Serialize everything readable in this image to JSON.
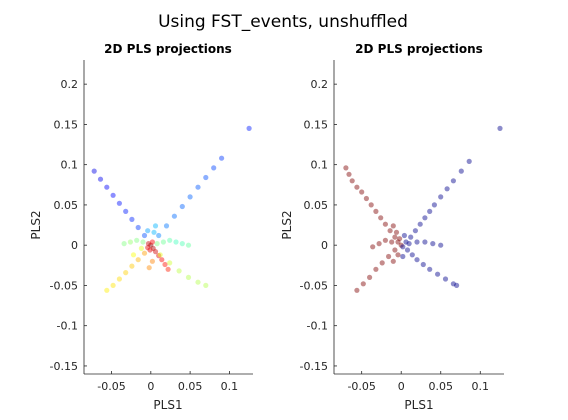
{
  "figure": {
    "title": "Using FST_events, unshuffled"
  },
  "chart_data": [
    {
      "type": "scatter",
      "title": "2D PLS projections",
      "xlabel": "PLS1",
      "ylabel": "PLS2",
      "xlim": [
        -0.085,
        0.13
      ],
      "ylim": [
        -0.16,
        0.23
      ],
      "xticks": [
        -0.05,
        0,
        0.05,
        0.1
      ],
      "xtick_labels": [
        "-0.05",
        "0",
        "0.05",
        "0.1"
      ],
      "yticks": [
        -0.15,
        -0.1,
        -0.05,
        0,
        0.05,
        0.1,
        0.15,
        0.2
      ],
      "ytick_labels": [
        "-0.15",
        "-0.1",
        "-0.05",
        "0",
        "0.05",
        "0.1",
        "0.15",
        "0.2"
      ],
      "grid": false,
      "colormap": "jet",
      "color_encoding": "continuous value per point (blue→red)",
      "point_alpha": 0.12,
      "series": [
        {
          "points": [
            [
              0.0,
              0.0,
              1.0
            ],
            [
              0.003,
              -0.004,
              0.95
            ],
            [
              0.006,
              -0.008,
              0.92
            ],
            [
              0.01,
              -0.013,
              0.9
            ],
            [
              0.014,
              -0.018,
              0.88
            ],
            [
              0.018,
              -0.024,
              0.86
            ],
            [
              0.022,
              -0.03,
              0.85
            ],
            [
              -0.003,
              0.002,
              0.93
            ],
            [
              -0.004,
              -0.003,
              0.9
            ],
            [
              0.002,
              0.004,
              0.88
            ],
            [
              -0.001,
              -0.006,
              0.9
            ],
            [
              0.008,
              0.002,
              0.5
            ],
            [
              0.016,
              0.004,
              0.48
            ],
            [
              0.024,
              0.006,
              0.46
            ],
            [
              0.032,
              0.004,
              0.44
            ],
            [
              0.04,
              0.002,
              0.45
            ],
            [
              0.048,
              0.0,
              0.47
            ],
            [
              -0.01,
              0.004,
              0.5
            ],
            [
              -0.018,
              0.006,
              0.5
            ],
            [
              -0.026,
              0.004,
              0.52
            ],
            [
              -0.034,
              0.002,
              0.5
            ],
            [
              -0.008,
              -0.01,
              0.72
            ],
            [
              -0.016,
              -0.018,
              0.7
            ],
            [
              -0.024,
              -0.026,
              0.68
            ],
            [
              -0.032,
              -0.034,
              0.67
            ],
            [
              -0.04,
              -0.042,
              0.66
            ],
            [
              -0.048,
              -0.05,
              0.65
            ],
            [
              -0.056,
              -0.056,
              0.64
            ],
            [
              -0.008,
              0.012,
              0.2
            ],
            [
              -0.016,
              0.022,
              0.18
            ],
            [
              -0.024,
              0.032,
              0.16
            ],
            [
              -0.032,
              0.042,
              0.15
            ],
            [
              -0.04,
              0.052,
              0.14
            ],
            [
              -0.048,
              0.062,
              0.13
            ],
            [
              -0.056,
              0.072,
              0.12
            ],
            [
              -0.064,
              0.082,
              0.11
            ],
            [
              -0.072,
              0.092,
              0.1
            ],
            [
              0.01,
              0.012,
              0.25
            ],
            [
              0.02,
              0.024,
              0.24
            ],
            [
              0.03,
              0.036,
              0.23
            ],
            [
              0.04,
              0.048,
              0.22
            ],
            [
              0.05,
              0.06,
              0.22
            ],
            [
              0.06,
              0.072,
              0.21
            ],
            [
              0.07,
              0.084,
              0.2
            ],
            [
              0.08,
              0.096,
              0.19
            ],
            [
              0.09,
              0.108,
              0.18
            ],
            [
              0.125,
              0.145,
              0.15
            ],
            [
              0.012,
              -0.012,
              0.6
            ],
            [
              0.024,
              -0.022,
              0.58
            ],
            [
              0.036,
              -0.032,
              0.56
            ],
            [
              0.048,
              -0.04,
              0.55
            ],
            [
              0.06,
              -0.046,
              0.55
            ],
            [
              -0.012,
              -0.004,
              0.6
            ],
            [
              -0.022,
              -0.012,
              0.62
            ],
            [
              0.004,
              0.016,
              0.3
            ],
            [
              0.006,
              0.024,
              0.3
            ],
            [
              -0.004,
              0.018,
              0.28
            ],
            [
              0.002,
              -0.02,
              0.75
            ],
            [
              -0.002,
              -0.028,
              0.74
            ],
            [
              0.07,
              -0.05,
              0.55
            ]
          ]
        }
      ]
    },
    {
      "type": "scatter",
      "title": "2D PLS projections",
      "xlabel": "PLS1",
      "ylabel": "PLS2",
      "xlim": [
        -0.085,
        0.13
      ],
      "ylim": [
        -0.16,
        0.23
      ],
      "xticks": [
        -0.05,
        0,
        0.05,
        0.1
      ],
      "xtick_labels": [
        "-0.05",
        "0",
        "0.05",
        "0.1"
      ],
      "yticks": [
        -0.15,
        -0.1,
        -0.05,
        0,
        0.05,
        0.1,
        0.15,
        0.2
      ],
      "ytick_labels": [
        "-0.15",
        "-0.1",
        "-0.05",
        "0",
        "0.05",
        "0.1",
        "0.15",
        "0.2"
      ],
      "grid": false,
      "point_alpha": 0.12,
      "series": [
        {
          "color": "#7f0000",
          "points": [
            [
              0.0,
              0.0
            ],
            [
              -0.004,
              0.004
            ],
            [
              -0.008,
              0.01
            ],
            [
              -0.014,
              0.018
            ],
            [
              -0.02,
              0.026
            ],
            [
              -0.026,
              0.034
            ],
            [
              -0.032,
              0.042
            ],
            [
              -0.038,
              0.05
            ],
            [
              -0.044,
              0.058
            ],
            [
              -0.05,
              0.066
            ],
            [
              -0.056,
              0.072
            ],
            [
              -0.062,
              0.08
            ],
            [
              -0.008,
              -0.006
            ],
            [
              -0.016,
              -0.014
            ],
            [
              -0.024,
              -0.022
            ],
            [
              -0.032,
              -0.03
            ],
            [
              -0.04,
              -0.04
            ],
            [
              -0.048,
              -0.048
            ],
            [
              -0.056,
              -0.056
            ],
            [
              -0.012,
              0.004
            ],
            [
              -0.02,
              0.006
            ],
            [
              -0.028,
              0.002
            ],
            [
              -0.036,
              -0.002
            ],
            [
              -0.006,
              0.016
            ],
            [
              -0.01,
              0.024
            ],
            [
              -0.004,
              -0.012
            ],
            [
              -0.01,
              -0.02
            ],
            [
              -0.066,
              0.088
            ],
            [
              -0.07,
              0.096
            ],
            [
              -0.002,
              0.008
            ]
          ]
        },
        {
          "color": "#00008b",
          "points": [
            [
              0.002,
              -0.002
            ],
            [
              0.006,
              0.004
            ],
            [
              0.012,
              0.01
            ],
            [
              0.018,
              0.018
            ],
            [
              0.024,
              0.026
            ],
            [
              0.03,
              0.034
            ],
            [
              0.036,
              0.042
            ],
            [
              0.042,
              0.05
            ],
            [
              0.05,
              0.06
            ],
            [
              0.058,
              0.07
            ],
            [
              0.066,
              0.08
            ],
            [
              0.076,
              0.092
            ],
            [
              0.086,
              0.104
            ],
            [
              0.125,
              0.145
            ],
            [
              0.008,
              -0.006
            ],
            [
              0.014,
              -0.012
            ],
            [
              0.02,
              -0.018
            ],
            [
              0.028,
              -0.024
            ],
            [
              0.036,
              -0.03
            ],
            [
              0.046,
              -0.036
            ],
            [
              0.056,
              -0.042
            ],
            [
              0.066,
              -0.048
            ],
            [
              0.01,
              0.002
            ],
            [
              0.02,
              0.004
            ],
            [
              0.03,
              0.004
            ],
            [
              0.04,
              0.002
            ],
            [
              0.05,
              0.0
            ],
            [
              0.004,
              0.012
            ],
            [
              0.002,
              -0.014
            ],
            [
              0.07,
              -0.05
            ]
          ]
        }
      ]
    }
  ]
}
